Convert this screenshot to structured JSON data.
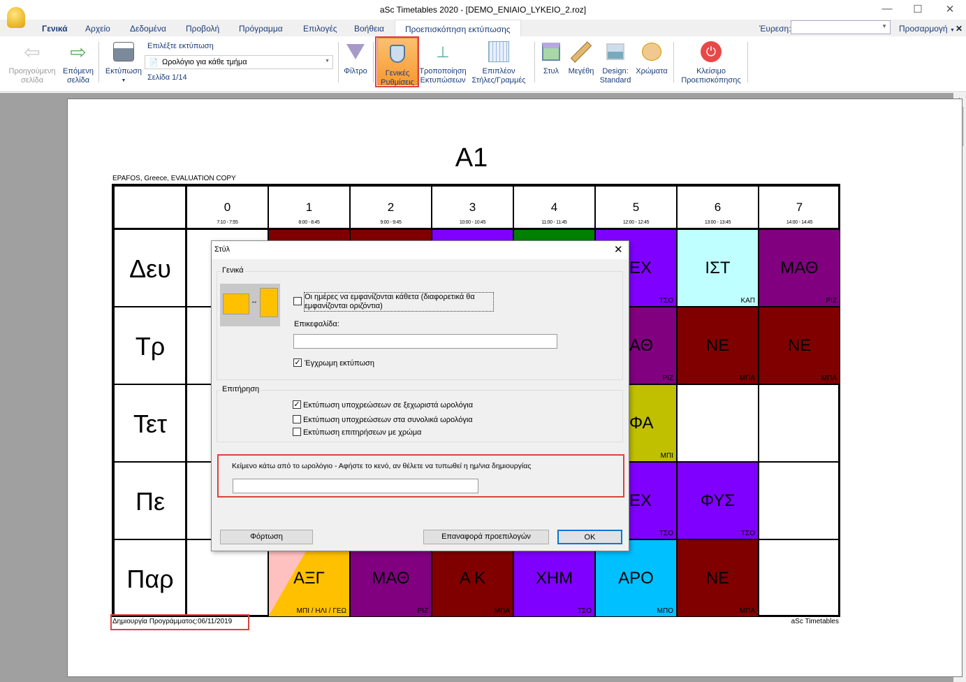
{
  "window": {
    "title": "aSc Timetables 2020  - [DEMO_ENIAIO_LYKEIO_2.roz]"
  },
  "tabs": [
    "Γενικά",
    "Αρχείο",
    "Δεδομένα",
    "Προβολή",
    "Πρόγραμμα",
    "Επιλογές",
    "Βοήθεια",
    "Προεπισκόπηση εκτύπωσης"
  ],
  "search": {
    "label": "Έυρεση:",
    "value": ""
  },
  "customize": "Προσαρμογή",
  "ribbon": {
    "prev": "Προηγούμενη σελίδα",
    "next": "Επόμενη σελίδα",
    "print": "Εκτύπωση",
    "choose_label": "Επιλέξτε εκτύπωση",
    "choose_value": "Ωρολόγιο για κάθε τμήμα",
    "page": "Σελίδα 1/14",
    "filter": "Φίλτρο",
    "general": "Γενικές Ρυθμίσεις",
    "modify": "Τροποποίηση Εκτυπώσεων",
    "extra": "Επιπλέον Στήλες/Γραμμές",
    "style": "Στυλ",
    "sizes": "Μεγέθη",
    "design": "Design: Standard",
    "colors": "Χρώματα",
    "close": "Κλείσιμο Προεπισκόπησης"
  },
  "timetable": {
    "title": "A1",
    "header_note": "EPAFOS, Greece, EVALUATION COPY",
    "periods": [
      {
        "n": "0",
        "t": "7:10 - 7:55"
      },
      {
        "n": "1",
        "t": "8:00 - 8:45"
      },
      {
        "n": "2",
        "t": "9:00 - 9:45"
      },
      {
        "n": "3",
        "t": "10:00 - 10:45"
      },
      {
        "n": "4",
        "t": "11:00 - 11:45"
      },
      {
        "n": "5",
        "t": "12:00 - 12:45"
      },
      {
        "n": "6",
        "t": "13:00 - 13:45"
      },
      {
        "n": "7",
        "t": "14:00 - 14:45"
      }
    ],
    "days": [
      "Δευ",
      "Τρ",
      "Τετ",
      "Πε",
      "Παρ"
    ],
    "cells": [
      [
        null,
        {
          "c": "#800000"
        },
        {
          "c": "#800000"
        },
        {
          "c": "#8000ff"
        },
        {
          "c": "#008000"
        },
        {
          "s": "ΕΧ",
          "t": "ΤΣΟ",
          "c": "#8000ff",
          "clip": true
        },
        {
          "s": "ΙΣΤ",
          "t": "ΚΑΠ",
          "c": "#c0ffff"
        },
        {
          "s": "ΜΑΘ",
          "t": "ΡΙΖ",
          "c": "#800080"
        }
      ],
      [
        null,
        null,
        null,
        null,
        null,
        {
          "s": "ΑΘ",
          "t": "ΡΙΖ",
          "c": "#800080",
          "clip": true
        },
        {
          "s": "ΝΕ",
          "t": "ΜΠΑ",
          "c": "#800000"
        },
        {
          "s": "ΝΕ",
          "t": "ΜΠΑ",
          "c": "#800000"
        }
      ],
      [
        null,
        null,
        null,
        null,
        null,
        {
          "s": "ΦΑ",
          "t": "ΜΠΙ",
          "c": "#c0c000",
          "clip": true
        },
        null,
        null
      ],
      [
        null,
        null,
        null,
        null,
        null,
        {
          "s": "ΕΧ",
          "t": "ΤΣΟ",
          "c": "#8000ff",
          "clip": true
        },
        {
          "s": "ΦΥΣ",
          "t": "ΤΣΟ",
          "c": "#8000ff"
        },
        null
      ],
      [
        null,
        {
          "s": "ΑΞΓ",
          "t": "ΜΠΙ / ΗΛΙ / ΓΕΩ",
          "c": "#ffc000",
          "split": "#ffc0c0"
        },
        {
          "s": "ΜΑΘ",
          "t": "ΡΙΖ",
          "c": "#800080"
        },
        {
          "s": "Α Κ",
          "t": "ΜΠΑ",
          "c": "#800000"
        },
        {
          "s": "ΧΗΜ",
          "t": "ΤΣΟ",
          "c": "#8000ff"
        },
        {
          "s": "ΑΡΟ",
          "t": "ΜΠΟ",
          "c": "#00c0ff"
        },
        {
          "s": "ΝΕ",
          "t": "ΜΠΑ",
          "c": "#800000"
        },
        null
      ]
    ],
    "footer_left": "Δημιουργία Προγράμματος:06/11/2019",
    "footer_right": "aSc Timetables"
  },
  "dialog": {
    "title": "Στύλ",
    "general_group": "Γενικά",
    "vertical_days": "Οι ημέρες να εμφανίζονται κάθετα (διαφορετικά θα εμφανίζονται οριζόντια)",
    "vertical_days_checked": false,
    "header_label": "Επικεφαλίδα:",
    "header_value": "",
    "color_print": "Έγχρωμη εκτύπωση",
    "color_print_checked": true,
    "supervision_group": "Επιτήρηση",
    "opt1": "Εκτύπωση υποχρεώσεων σε ξεχωριστά ωρολόγια",
    "opt1_checked": true,
    "opt2": "Εκτύπωση υποχρεώσεων στα συνολικά ωρολόγια",
    "opt2_checked": false,
    "opt3": "Εκτύπωση επιτηρήσεων με χρώμα",
    "opt3_checked": false,
    "footer_text_label": "Κείμενο κάτω από το ωρολόγιο - Αφήστε το κενό, αν θέλετε να τυπωθεί η ημ/νια δημιουργίας",
    "footer_text_value": "",
    "load": "Φόρτωση",
    "reset": "Επαναφορά προεπιλογών",
    "ok": "OK"
  },
  "colors": {
    "highlight": "#e04040",
    "accent": "#0078d7"
  }
}
